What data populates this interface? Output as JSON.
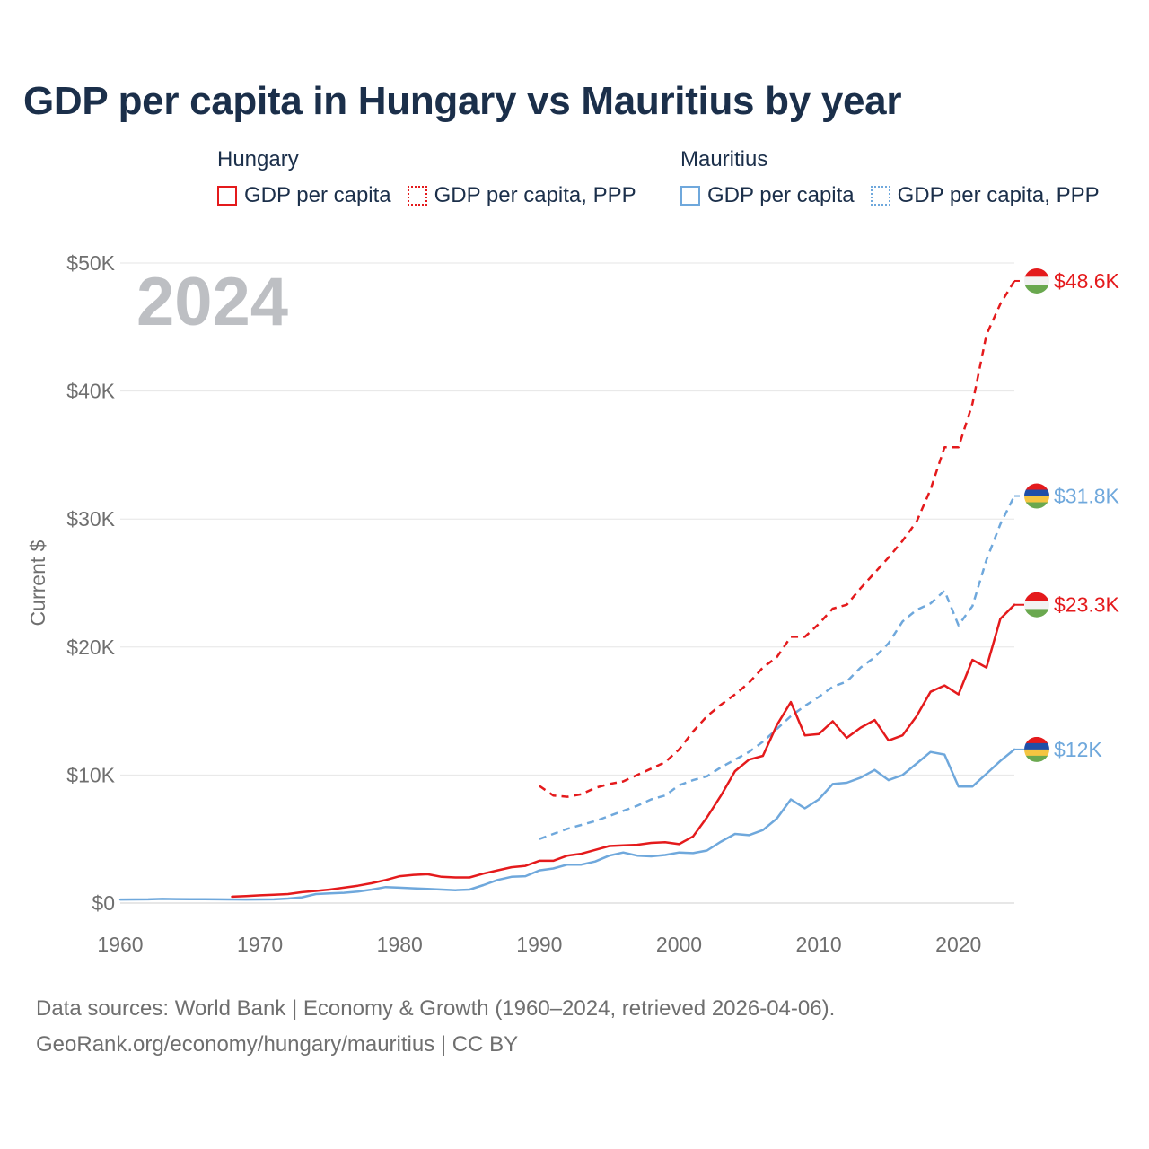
{
  "title": "GDP per capita in Hungary vs Mauritius by year",
  "legend": {
    "hungary_label": "Hungary",
    "mauritius_label": "Mauritius",
    "gdp_label": "GDP per capita",
    "ppp_label": "GDP per capita, PPP"
  },
  "footer": {
    "line1": "Data sources: World Bank | Economy & Growth (1960–2024, retrieved 2026-04-06).",
    "line2": "GeoRank.org/economy/hungary/mauritius | CC BY"
  },
  "colors": {
    "hungary": "#e41a1c",
    "mauritius": "#6fa8dc",
    "year_watermark": "#bdbfc3",
    "axis_text": "#6f6f6f",
    "grid": "#e6e6e6"
  },
  "chart_data": {
    "type": "line",
    "title": "GDP per capita in Hungary vs Mauritius by year",
    "year_label": "2024",
    "ylabel": "Current $",
    "xlabel": "",
    "xlim": [
      1960,
      2024
    ],
    "ylim": [
      0,
      50000
    ],
    "x_ticks": [
      1960,
      1970,
      1980,
      1990,
      2000,
      2010,
      2020
    ],
    "y_ticks": [
      0,
      10000,
      20000,
      30000,
      40000,
      50000
    ],
    "y_tick_labels": [
      "$0",
      "$10K",
      "$20K",
      "$30K",
      "$40K",
      "$50K"
    ],
    "grid": true,
    "series": [
      {
        "name": "Hungary GDP per capita, PPP",
        "country": "Hungary",
        "style": "dashed",
        "end_label": "$48.6K",
        "x": [
          1990,
          1991,
          1992,
          1993,
          1994,
          1995,
          1996,
          1997,
          1998,
          1999,
          2000,
          2001,
          2002,
          2003,
          2004,
          2005,
          2006,
          2007,
          2008,
          2009,
          2010,
          2011,
          2012,
          2013,
          2014,
          2015,
          2016,
          2017,
          2018,
          2019,
          2020,
          2021,
          2022,
          2023,
          2024
        ],
        "values": [
          9150,
          8400,
          8300,
          8500,
          9000,
          9300,
          9500,
          10000,
          10500,
          11000,
          12000,
          13400,
          14600,
          15500,
          16300,
          17200,
          18400,
          19200,
          20800,
          20800,
          21800,
          23000,
          23300,
          24600,
          25800,
          27000,
          28300,
          29800,
          32300,
          35600,
          35600,
          39000,
          44400,
          46800,
          48600
        ]
      },
      {
        "name": "Mauritius GDP per capita, PPP",
        "country": "Mauritius",
        "style": "dashed",
        "end_label": "$31.8K",
        "x": [
          1990,
          1991,
          1992,
          1993,
          1994,
          1995,
          1996,
          1997,
          1998,
          1999,
          2000,
          2001,
          2002,
          2003,
          2004,
          2005,
          2006,
          2007,
          2008,
          2009,
          2010,
          2011,
          2012,
          2013,
          2014,
          2015,
          2016,
          2017,
          2018,
          2019,
          2020,
          2021,
          2022,
          2023,
          2024
        ],
        "values": [
          5000,
          5400,
          5800,
          6100,
          6400,
          6800,
          7200,
          7600,
          8100,
          8400,
          9200,
          9600,
          9900,
          10600,
          11200,
          11800,
          12600,
          13600,
          14600,
          15400,
          16100,
          16900,
          17300,
          18400,
          19200,
          20300,
          22000,
          22900,
          23400,
          24400,
          21700,
          23200,
          26800,
          29600,
          31800
        ]
      },
      {
        "name": "Hungary GDP per capita",
        "country": "Hungary",
        "style": "solid",
        "end_label": "$23.3K",
        "x": [
          1968,
          1969,
          1970,
          1971,
          1972,
          1973,
          1974,
          1975,
          1976,
          1977,
          1978,
          1979,
          1980,
          1981,
          1982,
          1983,
          1984,
          1985,
          1986,
          1987,
          1988,
          1989,
          1990,
          1991,
          1992,
          1993,
          1994,
          1995,
          1996,
          1997,
          1998,
          1999,
          2000,
          2001,
          2002,
          2003,
          2004,
          2005,
          2006,
          2007,
          2008,
          2009,
          2010,
          2011,
          2012,
          2013,
          2014,
          2015,
          2016,
          2017,
          2018,
          2019,
          2020,
          2021,
          2022,
          2023,
          2024
        ],
        "values": [
          500,
          550,
          600,
          650,
          700,
          850,
          950,
          1050,
          1200,
          1350,
          1550,
          1800,
          2100,
          2200,
          2250,
          2050,
          2000,
          2000,
          2300,
          2550,
          2800,
          2900,
          3300,
          3300,
          3700,
          3850,
          4150,
          4450,
          4500,
          4550,
          4700,
          4750,
          4600,
          5200,
          6700,
          8400,
          10300,
          11200,
          11500,
          13900,
          15700,
          13100,
          13200,
          14200,
          12900,
          13700,
          14300,
          12700,
          13100,
          14600,
          16500,
          17000,
          16300,
          19000,
          18400,
          22200,
          23300
        ]
      },
      {
        "name": "Mauritius GDP per capita",
        "country": "Mauritius",
        "style": "solid",
        "end_label": "$12K",
        "x": [
          1960,
          1961,
          1962,
          1963,
          1964,
          1965,
          1966,
          1967,
          1968,
          1969,
          1970,
          1971,
          1972,
          1973,
          1974,
          1975,
          1976,
          1977,
          1978,
          1979,
          1980,
          1981,
          1982,
          1983,
          1984,
          1985,
          1986,
          1987,
          1988,
          1989,
          1990,
          1991,
          1992,
          1993,
          1994,
          1995,
          1996,
          1997,
          1998,
          1999,
          2000,
          2001,
          2002,
          2003,
          2004,
          2005,
          2006,
          2007,
          2008,
          2009,
          2010,
          2011,
          2012,
          2013,
          2014,
          2015,
          2016,
          2017,
          2018,
          2019,
          2020,
          2021,
          2022,
          2023,
          2024
        ],
        "values": [
          270,
          280,
          290,
          320,
          310,
          300,
          300,
          290,
          280,
          270,
          280,
          290,
          350,
          450,
          700,
          750,
          800,
          900,
          1050,
          1250,
          1200,
          1150,
          1100,
          1050,
          1000,
          1050,
          1400,
          1800,
          2050,
          2100,
          2550,
          2700,
          3000,
          3000,
          3250,
          3700,
          3950,
          3700,
          3650,
          3750,
          3950,
          3900,
          4100,
          4800,
          5400,
          5300,
          5700,
          6600,
          8100,
          7400,
          8100,
          9300,
          9400,
          9800,
          10400,
          9600,
          10000,
          10900,
          11800,
          11600,
          9100,
          9100,
          10100,
          11100,
          12000
        ]
      }
    ]
  }
}
